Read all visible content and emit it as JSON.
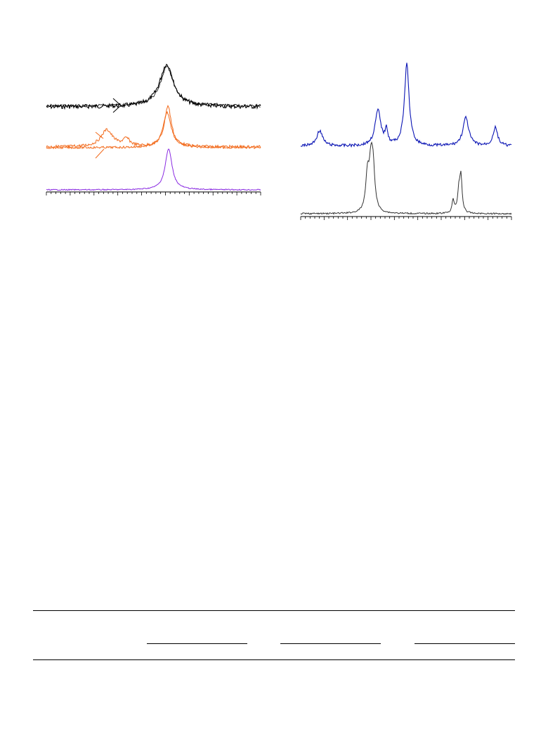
{
  "figures": {
    "left_panel": {
      "traces": [
        {
          "name": "",
          "color": "#000000",
          "peak_count": 1
        },
        {
          "name": "",
          "color": "#f26b1d",
          "peak_count": 2
        },
        {
          "name": "",
          "color": "#8a2be2",
          "peak_count": 1
        }
      ],
      "arrow_colors": [
        "#000000",
        "#f26b1d"
      ]
    },
    "right_panel": {
      "traces": [
        {
          "name": "",
          "color": "#0a14b4",
          "peak_count": 5
        },
        {
          "name": "",
          "color": "#333333",
          "peak_count": 2
        }
      ]
    }
  },
  "table": {
    "column_groups": 3
  }
}
